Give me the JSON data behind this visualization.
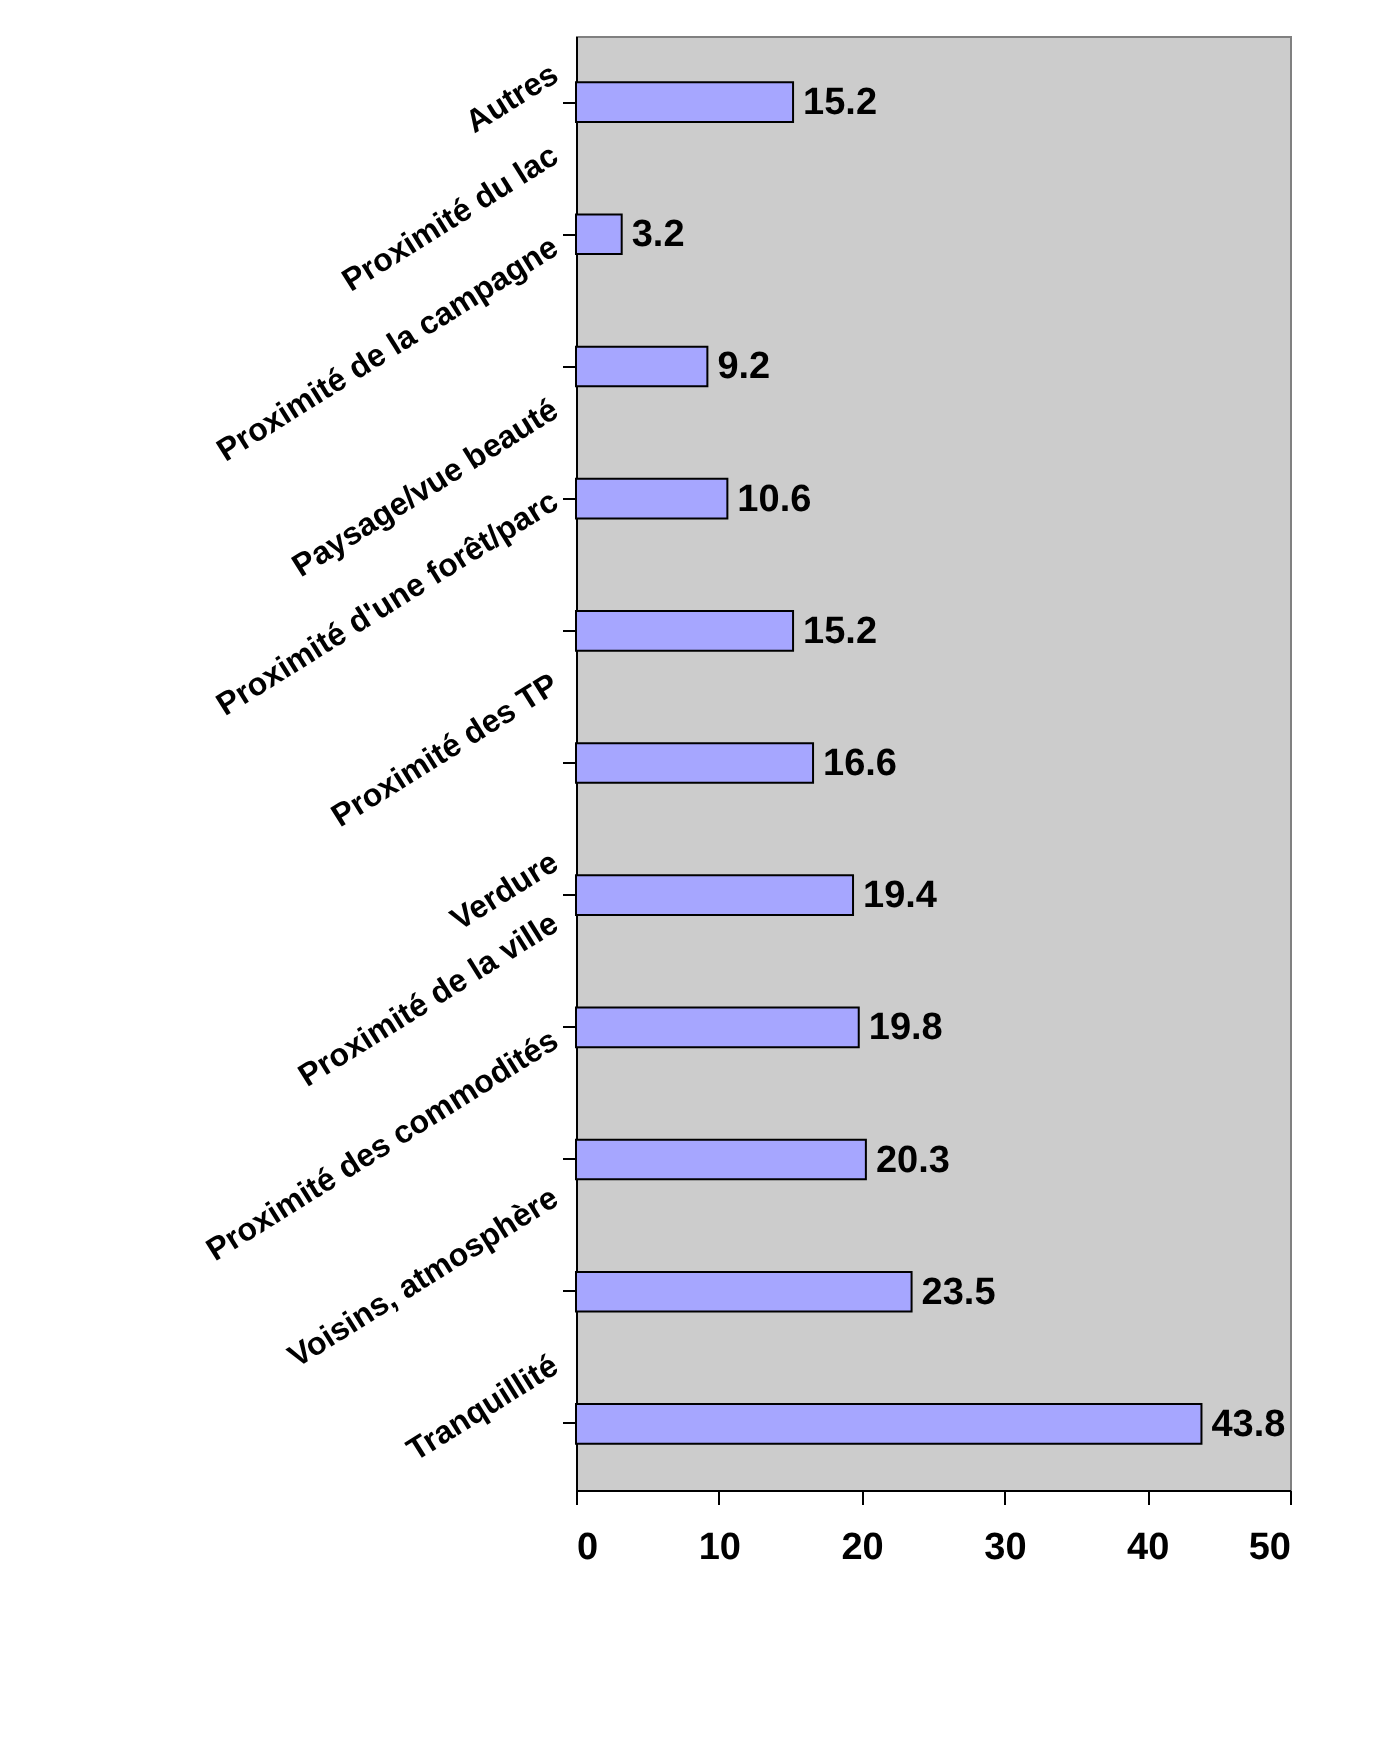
{
  "chart_data": {
    "type": "bar",
    "orientation": "horizontal",
    "categories": [
      "Autres",
      "Proximité du lac",
      "Proximité de la campagne",
      "Paysage/vue beauté",
      "Proximité d'une forêt/parc",
      "Proximité des TP",
      "Verdure",
      "Proximité de la ville",
      "Proximité des commodités",
      "Voisins, atmosphère",
      "Tranquillité"
    ],
    "values": [
      15.2,
      3.2,
      9.2,
      10.6,
      15.2,
      16.6,
      19.4,
      19.8,
      20.3,
      23.5,
      43.8
    ],
    "color": "#a6a6ff",
    "xlim": [
      0,
      50
    ],
    "xticks": [
      0,
      10,
      20,
      30,
      40,
      50
    ],
    "grid": false,
    "data_labels": true
  }
}
